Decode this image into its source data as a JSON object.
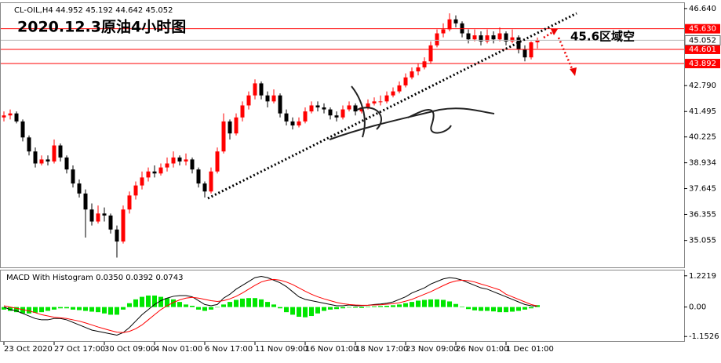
{
  "chart_data": {
    "type": "candlestick",
    "symbol": "CL-OIL,H4",
    "title": "2020.12.3原油4小时图",
    "annotation": "45.6区域空",
    "categories": [
      "23 Oct 2020",
      null,
      null,
      null,
      null,
      null,
      null,
      null,
      "27 Oct 17:00",
      null,
      null,
      null,
      null,
      null,
      null,
      null,
      "30 Oct 09:00",
      null,
      null,
      null,
      null,
      null,
      null,
      null,
      "4 Nov 01:00",
      null,
      null,
      null,
      null,
      null,
      null,
      null,
      "6 Nov 17:00",
      null,
      null,
      null,
      null,
      null,
      null,
      null,
      "11 Nov 09:00",
      null,
      null,
      null,
      null,
      null,
      null,
      null,
      "16 Nov 01:00",
      null,
      null,
      null,
      null,
      null,
      null,
      null,
      "18 Nov 17:00",
      null,
      null,
      null,
      null,
      null,
      null,
      null,
      "23 Nov 09:00",
      null,
      null,
      null,
      null,
      null,
      null,
      null,
      "26 Nov 01:00",
      null,
      null,
      null,
      null,
      null,
      null,
      null,
      "1 Dec 01:00",
      null,
      null,
      null,
      null,
      null
    ],
    "ohlc": [
      [
        41.2,
        41.5,
        41.0,
        41.3
      ],
      [
        41.3,
        41.6,
        41.1,
        41.4
      ],
      [
        41.4,
        41.5,
        40.9,
        41.0
      ],
      [
        41.0,
        41.1,
        40.0,
        40.2
      ],
      [
        40.2,
        40.3,
        39.3,
        39.5
      ],
      [
        39.5,
        39.7,
        38.7,
        38.9
      ],
      [
        38.9,
        39.3,
        38.8,
        39.1
      ],
      [
        39.1,
        39.3,
        38.8,
        39.0
      ],
      [
        39.0,
        40.1,
        38.9,
        39.8
      ],
      [
        39.8,
        39.9,
        39.0,
        39.2
      ],
      [
        39.2,
        39.3,
        38.4,
        38.6
      ],
      [
        38.6,
        38.8,
        37.7,
        37.9
      ],
      [
        37.9,
        38.1,
        37.2,
        37.4
      ],
      [
        37.4,
        37.6,
        35.2,
        36.6
      ],
      [
        36.6,
        36.9,
        35.8,
        36.0
      ],
      [
        36.0,
        36.8,
        35.9,
        36.4
      ],
      [
        36.4,
        36.7,
        36.0,
        36.3
      ],
      [
        36.3,
        36.4,
        35.4,
        35.6
      ],
      [
        35.6,
        35.8,
        34.2,
        35.0
      ],
      [
        35.0,
        36.8,
        34.9,
        36.6
      ],
      [
        36.6,
        37.5,
        36.4,
        37.3
      ],
      [
        37.3,
        38.0,
        37.1,
        37.8
      ],
      [
        37.8,
        38.5,
        37.6,
        38.2
      ],
      [
        38.2,
        38.7,
        38.0,
        38.5
      ],
      [
        38.5,
        38.8,
        38.2,
        38.4
      ],
      [
        38.4,
        38.9,
        38.3,
        38.7
      ],
      [
        38.7,
        39.2,
        38.5,
        38.9
      ],
      [
        38.9,
        39.5,
        38.7,
        39.2
      ],
      [
        39.2,
        39.3,
        38.8,
        39.0
      ],
      [
        39.0,
        39.4,
        38.8,
        39.1
      ],
      [
        39.1,
        39.2,
        38.4,
        38.6
      ],
      [
        38.6,
        38.7,
        37.7,
        37.9
      ],
      [
        37.9,
        38.0,
        37.2,
        37.5
      ],
      [
        37.5,
        38.7,
        37.4,
        38.5
      ],
      [
        38.5,
        39.7,
        38.4,
        39.5
      ],
      [
        39.5,
        41.4,
        39.4,
        41.0
      ],
      [
        41.0,
        41.1,
        40.1,
        40.4
      ],
      [
        40.4,
        41.4,
        40.3,
        41.2
      ],
      [
        41.2,
        42.0,
        41.0,
        41.8
      ],
      [
        41.8,
        42.5,
        41.6,
        42.3
      ],
      [
        42.3,
        43.1,
        42.1,
        42.9
      ],
      [
        42.9,
        43.0,
        42.1,
        42.3
      ],
      [
        42.3,
        42.5,
        41.7,
        42.0
      ],
      [
        42.0,
        42.6,
        41.9,
        42.3
      ],
      [
        42.3,
        42.4,
        41.2,
        41.4
      ],
      [
        41.4,
        41.6,
        40.8,
        41.0
      ],
      [
        41.0,
        41.2,
        40.6,
        40.8
      ],
      [
        40.8,
        41.2,
        40.7,
        41.0
      ],
      [
        41.0,
        41.7,
        40.9,
        41.5
      ],
      [
        41.5,
        42.0,
        41.4,
        41.8
      ],
      [
        41.8,
        42.0,
        41.5,
        41.7
      ],
      [
        41.7,
        41.9,
        41.4,
        41.6
      ],
      [
        41.6,
        41.7,
        41.1,
        41.3
      ],
      [
        41.3,
        41.5,
        41.0,
        41.2
      ],
      [
        41.2,
        41.8,
        41.1,
        41.6
      ],
      [
        41.6,
        42.0,
        41.5,
        41.8
      ],
      [
        41.8,
        41.9,
        41.3,
        41.5
      ],
      [
        41.5,
        41.9,
        41.4,
        41.7
      ],
      [
        41.7,
        42.1,
        41.6,
        41.9
      ],
      [
        41.9,
        42.2,
        41.8,
        42.0
      ],
      [
        42.0,
        42.3,
        41.8,
        42.0
      ],
      [
        42.0,
        42.5,
        41.9,
        42.3
      ],
      [
        42.3,
        42.7,
        42.2,
        42.5
      ],
      [
        42.5,
        43.0,
        42.4,
        42.8
      ],
      [
        42.8,
        43.4,
        42.7,
        43.2
      ],
      [
        43.2,
        43.7,
        43.1,
        43.5
      ],
      [
        43.5,
        43.9,
        43.3,
        43.7
      ],
      [
        43.7,
        44.2,
        43.6,
        44.0
      ],
      [
        44.0,
        45.0,
        43.9,
        44.8
      ],
      [
        44.8,
        45.6,
        44.7,
        45.4
      ],
      [
        45.4,
        45.9,
        45.2,
        45.6
      ],
      [
        45.6,
        46.4,
        45.5,
        46.1
      ],
      [
        46.1,
        46.3,
        45.7,
        45.9
      ],
      [
        45.9,
        46.0,
        45.2,
        45.4
      ],
      [
        45.4,
        45.6,
        44.9,
        45.1
      ],
      [
        45.1,
        45.6,
        45.0,
        45.3
      ],
      [
        45.3,
        45.5,
        44.8,
        45.0
      ],
      [
        45.0,
        45.6,
        44.9,
        45.3
      ],
      [
        45.3,
        45.5,
        44.9,
        45.1
      ],
      [
        45.1,
        45.7,
        45.0,
        45.4
      ],
      [
        45.4,
        45.5,
        44.8,
        45.0
      ],
      [
        45.0,
        45.6,
        44.9,
        45.2
      ],
      [
        45.2,
        45.3,
        44.4,
        44.6
      ],
      [
        44.6,
        44.8,
        44.0,
        44.2
      ],
      [
        44.2,
        45.0,
        44.1,
        44.952
      ],
      [
        44.952,
        45.192,
        44.642,
        45.052
      ]
    ],
    "up_color": "#ff0000",
    "down_color": "#000000",
    "ylim": [
      33.71,
      46.91
    ],
    "yticks": [
      {
        "value": 46.64,
        "label": "46.640"
      },
      {
        "value": 42.79,
        "label": "42.790"
      },
      41.495,
      40.225,
      38.934,
      37.645,
      36.355,
      35.055
    ],
    "levels": [
      {
        "value": 45.63,
        "label": "45.630"
      },
      {
        "value": 44.601,
        "label": "44.601"
      },
      {
        "value": 43.892,
        "label": "43.892"
      }
    ],
    "levels_color": "#ff0000",
    "current_price": 45.052,
    "macd": {
      "type": "macd",
      "title": "MACD With Histogram",
      "header_values": [
        0.035,
        0.0392,
        0.0743
      ],
      "header_labels": [
        "0.0350",
        "0.0392",
        "0.0743"
      ],
      "ylim": [
        -1.33,
        1.43
      ],
      "yticks": [
        1.2219,
        {
          "value": 0,
          "label": "0.00"
        },
        -1.1526
      ],
      "histogram": {
        "color": "#00e600",
        "values": [
          -0.1,
          -0.15,
          -0.2,
          -0.25,
          -0.25,
          -0.22,
          -0.2,
          -0.15,
          -0.1,
          -0.05,
          -0.05,
          -0.1,
          -0.12,
          -0.15,
          -0.18,
          -0.2,
          -0.25,
          -0.3,
          -0.3,
          -0.1,
          0.15,
          0.3,
          0.4,
          0.45,
          0.45,
          0.4,
          0.35,
          0.3,
          0.2,
          0.1,
          0.05,
          -0.1,
          -0.15,
          -0.1,
          0.0,
          0.1,
          0.2,
          0.28,
          0.33,
          0.35,
          0.35,
          0.3,
          0.2,
          0.1,
          -0.05,
          -0.2,
          -0.3,
          -0.38,
          -0.4,
          -0.35,
          -0.25,
          -0.15,
          -0.1,
          -0.08,
          -0.05,
          -0.02,
          -0.03,
          -0.04,
          0.02,
          0.03,
          0.04,
          0.05,
          0.07,
          0.1,
          0.15,
          0.2,
          0.25,
          0.28,
          0.3,
          0.3,
          0.28,
          0.22,
          0.12,
          0.02,
          -0.08,
          -0.13,
          -0.15,
          -0.15,
          -0.17,
          -0.2,
          -0.2,
          -0.18,
          -0.15,
          -0.1,
          -0.05,
          0.0743
        ]
      },
      "series": [
        {
          "color": "#000000",
          "values": [
            0.0,
            -0.1,
            -0.15,
            -0.25,
            -0.35,
            -0.45,
            -0.5,
            -0.5,
            -0.45,
            -0.45,
            -0.5,
            -0.6,
            -0.7,
            -0.8,
            -0.9,
            -0.95,
            -1.0,
            -1.05,
            -1.1,
            -1.0,
            -0.8,
            -0.55,
            -0.3,
            -0.1,
            0.1,
            0.25,
            0.35,
            0.42,
            0.45,
            0.45,
            0.4,
            0.25,
            0.1,
            0.05,
            0.1,
            0.35,
            0.5,
            0.7,
            0.85,
            1.0,
            1.15,
            1.2,
            1.15,
            1.05,
            0.95,
            0.8,
            0.6,
            0.4,
            0.3,
            0.25,
            0.2,
            0.15,
            0.1,
            0.05,
            0.05,
            0.08,
            0.05,
            0.05,
            0.07,
            0.1,
            0.12,
            0.15,
            0.2,
            0.3,
            0.4,
            0.55,
            0.65,
            0.75,
            0.9,
            1.0,
            1.1,
            1.15,
            1.12,
            1.05,
            0.95,
            0.85,
            0.75,
            0.7,
            0.6,
            0.5,
            0.4,
            0.3,
            0.2,
            0.1,
            0.05,
            0.035
          ]
        },
        {
          "color": "#ff0000",
          "values": [
            0.05,
            0.0,
            -0.05,
            -0.1,
            -0.15,
            -0.22,
            -0.3,
            -0.35,
            -0.4,
            -0.42,
            -0.45,
            -0.5,
            -0.55,
            -0.62,
            -0.7,
            -0.78,
            -0.85,
            -0.92,
            -0.98,
            -1.0,
            -0.95,
            -0.85,
            -0.7,
            -0.5,
            -0.3,
            -0.1,
            0.05,
            0.18,
            0.28,
            0.35,
            0.38,
            0.35,
            0.3,
            0.25,
            0.22,
            0.25,
            0.32,
            0.42,
            0.55,
            0.7,
            0.85,
            0.98,
            1.05,
            1.08,
            1.05,
            0.98,
            0.88,
            0.75,
            0.62,
            0.5,
            0.4,
            0.32,
            0.25,
            0.18,
            0.13,
            0.1,
            0.08,
            0.07,
            0.07,
            0.08,
            0.09,
            0.11,
            0.13,
            0.17,
            0.23,
            0.3,
            0.4,
            0.5,
            0.6,
            0.72,
            0.84,
            0.95,
            1.02,
            1.05,
            1.03,
            0.98,
            0.9,
            0.83,
            0.75,
            0.67,
            0.5,
            0.4,
            0.3,
            0.2,
            0.1,
            0.0392
          ]
        }
      ]
    }
  }
}
